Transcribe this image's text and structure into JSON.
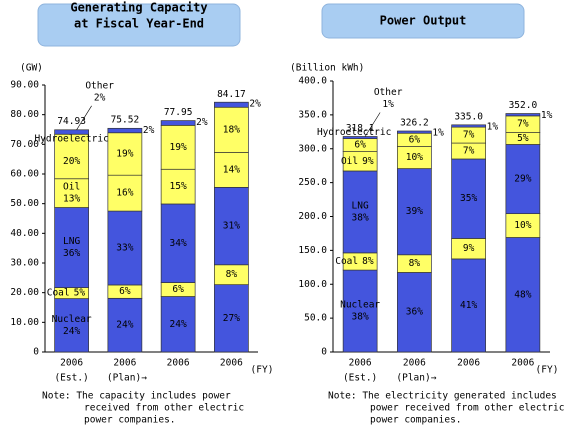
{
  "chart_data": [
    {
      "type": "bar",
      "stacked": true,
      "title": [
        "Generating Capacity",
        "at Fiscal Year-End"
      ],
      "y_label": "(GW)",
      "x_label": "(FY)",
      "categories": [
        "2006",
        "2006",
        "2006",
        "2006"
      ],
      "annotations": [
        "(Est.)",
        "(Plan)→"
      ],
      "ylim": [
        0,
        90
      ],
      "yticks": [
        0,
        {
          "value": 10,
          "label": "10.00"
        },
        {
          "value": 20,
          "label": "20.00"
        },
        {
          "value": 30,
          "label": "30.00"
        },
        {
          "value": 40,
          "label": "40.00"
        },
        {
          "value": 50,
          "label": "50.00"
        },
        {
          "value": 60,
          "label": "60.00"
        },
        {
          "value": 70,
          "label": "70.00"
        },
        {
          "value": 80,
          "label": "80.00"
        },
        {
          "value": 90,
          "label": "90.00"
        }
      ],
      "grid": false,
      "series": [
        {
          "name": "Nuclear",
          "color": "#4455dd",
          "values": [
            18.0,
            18.1,
            18.7,
            22.7
          ],
          "share_labels": [
            "24%",
            "24%",
            "24%",
            "27%"
          ]
        },
        {
          "name": "Coal",
          "color": "#ffff66",
          "values": [
            3.7,
            4.5,
            4.7,
            6.7
          ],
          "share_labels": [
            "5%",
            "6%",
            "6%",
            "8%"
          ]
        },
        {
          "name": "LNG",
          "color": "#4455dd",
          "values": [
            27.0,
            24.9,
            26.5,
            26.1
          ],
          "share_labels": [
            "36%",
            "33%",
            "34%",
            "31%"
          ]
        },
        {
          "name": "Oil",
          "color": "#ffff66",
          "values": [
            9.7,
            12.1,
            11.7,
            11.8
          ],
          "share_labels": [
            "13%",
            "16%",
            "15%",
            "14%"
          ]
        },
        {
          "name": "Hydroelectric",
          "color": "#ffff66",
          "values": [
            15.0,
            14.3,
            14.8,
            15.2
          ],
          "share_labels": [
            "20%",
            "19%",
            "19%",
            "18%"
          ]
        },
        {
          "name": "Other",
          "color": "#4455dd",
          "values": [
            1.5,
            1.5,
            1.6,
            1.7
          ],
          "share_labels": [
            "2%",
            "2%",
            "2%",
            "2%"
          ]
        }
      ],
      "totals": [
        74.93,
        75.52,
        77.95,
        84.17
      ],
      "note": [
        "Note: The capacity includes power",
        "received from other electric",
        "power companies."
      ]
    },
    {
      "type": "bar",
      "stacked": true,
      "title": [
        "Power Output"
      ],
      "y_label": "(Billion kWh)",
      "x_label": "(FY)",
      "categories": [
        "2006",
        "2006",
        "2006",
        "2006"
      ],
      "annotations": [
        "(Est.)",
        "(Plan)→"
      ],
      "ylim": [
        0,
        400
      ],
      "yticks": [
        0,
        {
          "value": 50,
          "label": "50.0"
        },
        {
          "value": 100,
          "label": "100.0"
        },
        {
          "value": 150,
          "label": "150.0"
        },
        {
          "value": 200,
          "label": "200.0"
        },
        {
          "value": 250,
          "label": "250.0"
        },
        {
          "value": 300,
          "label": "300.0"
        },
        {
          "value": 350,
          "label": "350.0"
        },
        {
          "value": 400,
          "label": "400.0"
        }
      ],
      "grid": false,
      "series": [
        {
          "name": "Nuclear",
          "color": "#4455dd",
          "values": [
            120.9,
            117.4,
            137.4,
            169.0
          ],
          "share_labels": [
            "38%",
            "36%",
            "41%",
            "48%"
          ]
        },
        {
          "name": "Coal",
          "color": "#ffff66",
          "values": [
            25.4,
            26.1,
            30.2,
            35.2
          ],
          "share_labels": [
            "8%",
            "8%",
            "9%",
            "10%"
          ]
        },
        {
          "name": "LNG",
          "color": "#4455dd",
          "values": [
            120.9,
            127.2,
            117.3,
            102.1
          ],
          "share_labels": [
            "38%",
            "39%",
            "35%",
            "29%"
          ]
        },
        {
          "name": "Oil",
          "color": "#ffff66",
          "values": [
            28.6,
            32.6,
            23.5,
            17.6
          ],
          "share_labels": [
            "9%",
            "10%",
            "7%",
            "5%"
          ]
        },
        {
          "name": "Hydroelectric",
          "color": "#ffff66",
          "values": [
            19.1,
            19.6,
            23.5,
            24.6
          ],
          "share_labels": [
            "6%",
            "6%",
            "7%",
            "7%"
          ]
        },
        {
          "name": "Other",
          "color": "#4455dd",
          "values": [
            3.2,
            3.3,
            3.4,
            3.5
          ],
          "share_labels": [
            "1%",
            "1%",
            "1%",
            "1%"
          ]
        }
      ],
      "totals": [
        318.1,
        326.2,
        {
          "value": 335,
          "label": "335.0"
        },
        {
          "value": 352,
          "label": "352.0"
        }
      ],
      "note": [
        "Note: The electricity generated includes",
        "power received from other electric",
        "power companies."
      ]
    }
  ]
}
